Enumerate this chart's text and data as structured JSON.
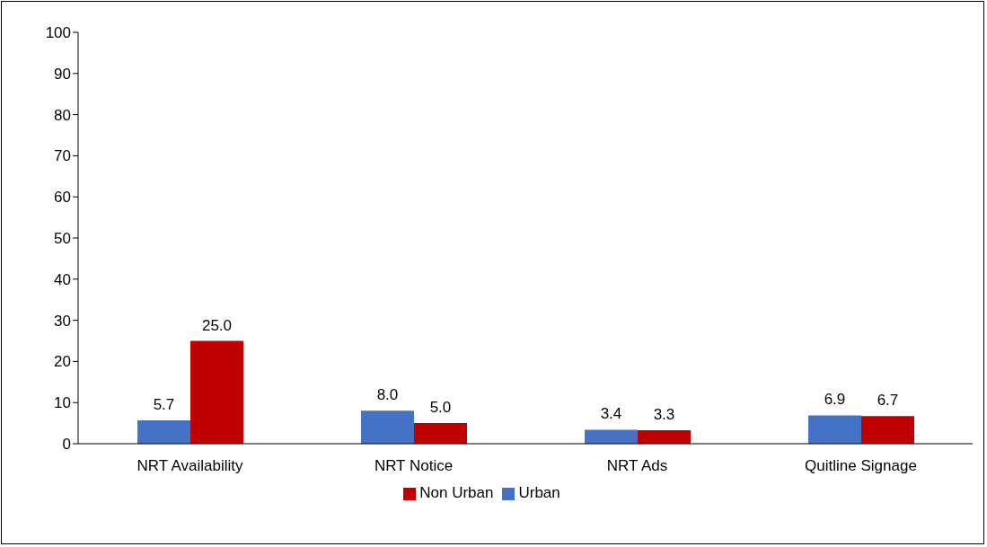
{
  "chart_data": {
    "type": "bar",
    "categories": [
      "NRT Availability",
      "NRT Notice",
      "NRT Ads",
      "Quitline Signage"
    ],
    "series": [
      {
        "name": "Urban",
        "color": "#4472c4",
        "values": [
          5.7,
          8.0,
          3.4,
          6.9
        ],
        "value_labels": [
          "5.7",
          "8.0",
          "3.4",
          "6.9"
        ]
      },
      {
        "name": "Non Urban",
        "color": "#c00000",
        "values": [
          25.0,
          5.0,
          3.3,
          6.7
        ],
        "value_labels": [
          "25.0",
          "5.0",
          "3.3",
          "6.7"
        ]
      }
    ],
    "ylim": [
      0,
      100
    ],
    "yticks": [
      0,
      10,
      20,
      30,
      40,
      50,
      60,
      70,
      80,
      90,
      100
    ],
    "grid": false,
    "legend": "bottom"
  }
}
